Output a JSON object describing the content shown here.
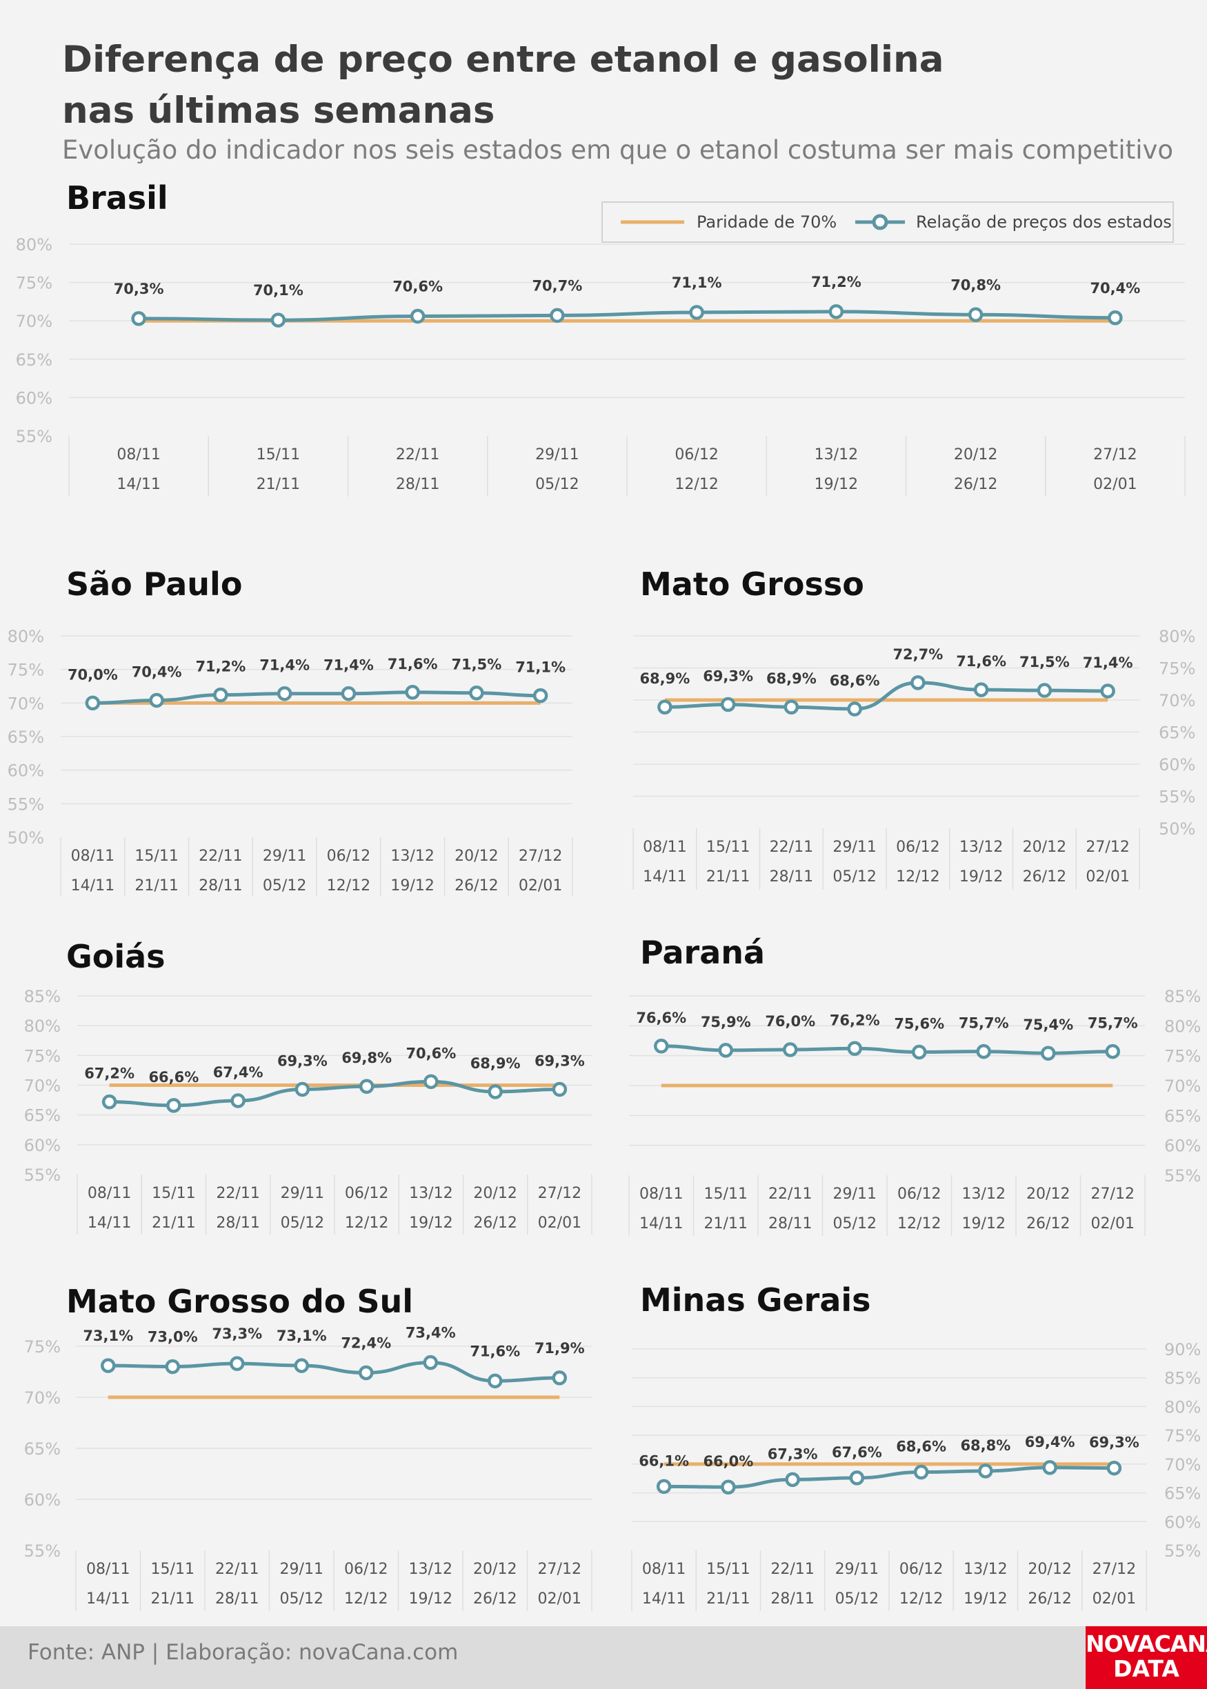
{
  "title_line1": "Diferença de preço entre etanol e gasolina",
  "title_line2": "nas últimas semanas",
  "subtitle": "Evolução do indicador nos seis estados em que o etanol costuma ser mais competitivo",
  "legend": {
    "parity": "Paridade de 70%",
    "series": "Relação de preços dos estados"
  },
  "footer": {
    "source": "Fonte: ANP | Elaboração: novaCana.com",
    "logo_line1": "NOVACANA",
    "logo_line2": "DATA"
  },
  "colors": {
    "series": "#5b95a3",
    "parity": "#e8b06a",
    "grid": "#e1e1e1",
    "tick": "#bdbdbd",
    "background": "#f3f3f3"
  },
  "chart_data": [
    {
      "id": "brasil",
      "title": "Brasil",
      "type": "line",
      "categories": [
        [
          "08/11",
          "14/11"
        ],
        [
          "15/11",
          "21/11"
        ],
        [
          "22/11",
          "28/11"
        ],
        [
          "29/11",
          "05/12"
        ],
        [
          "06/12",
          "12/12"
        ],
        [
          "13/12",
          "19/12"
        ],
        [
          "20/12",
          "26/12"
        ],
        [
          "27/12",
          "02/01"
        ]
      ],
      "values": [
        70.3,
        70.1,
        70.6,
        70.7,
        71.1,
        71.2,
        70.8,
        70.4
      ],
      "labels": [
        "70,3%",
        "70,1%",
        "70,6%",
        "70,7%",
        "71,1%",
        "71,2%",
        "70,8%",
        "70,4%"
      ],
      "parity": 70,
      "yticks": [
        55,
        60,
        65,
        70,
        75,
        80
      ],
      "ytick_labels": [
        "55%",
        "60%",
        "65%",
        "70%",
        "75%",
        "80%"
      ],
      "ylim": [
        55,
        80
      ],
      "yaxis": "left",
      "grid": true
    },
    {
      "id": "sao-paulo",
      "title": "São Paulo",
      "type": "line",
      "categories": [
        [
          "08/11",
          "14/11"
        ],
        [
          "15/11",
          "21/11"
        ],
        [
          "22/11",
          "28/11"
        ],
        [
          "29/11",
          "05/12"
        ],
        [
          "06/12",
          "12/12"
        ],
        [
          "13/12",
          "19/12"
        ],
        [
          "20/12",
          "26/12"
        ],
        [
          "27/12",
          "02/01"
        ]
      ],
      "values": [
        70.0,
        70.4,
        71.2,
        71.4,
        71.4,
        71.6,
        71.5,
        71.1
      ],
      "labels": [
        "70,0%",
        "70,4%",
        "71,2%",
        "71,4%",
        "71,4%",
        "71,6%",
        "71,5%",
        "71,1%"
      ],
      "parity": 70,
      "yticks": [
        50,
        55,
        60,
        65,
        70,
        75,
        80
      ],
      "ytick_labels": [
        "50%",
        "55%",
        "60%",
        "65%",
        "70%",
        "75%",
        "80%"
      ],
      "ylim": [
        50,
        80
      ],
      "yaxis": "left",
      "grid": true
    },
    {
      "id": "mato-grosso",
      "title": "Mato Grosso",
      "type": "line",
      "categories": [
        [
          "08/11",
          "14/11"
        ],
        [
          "15/11",
          "21/11"
        ],
        [
          "22/11",
          "28/11"
        ],
        [
          "29/11",
          "05/12"
        ],
        [
          "06/12",
          "12/12"
        ],
        [
          "13/12",
          "19/12"
        ],
        [
          "20/12",
          "26/12"
        ],
        [
          "27/12",
          "02/01"
        ]
      ],
      "values": [
        68.9,
        69.3,
        68.9,
        68.6,
        72.7,
        71.6,
        71.5,
        71.4
      ],
      "labels": [
        "68,9%",
        "69,3%",
        "68,9%",
        "68,6%",
        "72,7%",
        "71,6%",
        "71,5%",
        "71,4%"
      ],
      "parity": 70,
      "yticks": [
        50,
        55,
        60,
        65,
        70,
        75,
        80
      ],
      "ytick_labels": [
        "50%",
        "55%",
        "60%",
        "65%",
        "70%",
        "75%",
        "80%"
      ],
      "ylim": [
        50,
        80
      ],
      "yaxis": "right",
      "grid": true
    },
    {
      "id": "goias",
      "title": "Goiás",
      "type": "line",
      "categories": [
        [
          "08/11",
          "14/11"
        ],
        [
          "15/11",
          "21/11"
        ],
        [
          "22/11",
          "28/11"
        ],
        [
          "29/11",
          "05/12"
        ],
        [
          "06/12",
          "12/12"
        ],
        [
          "13/12",
          "19/12"
        ],
        [
          "20/12",
          "26/12"
        ],
        [
          "27/12",
          "02/01"
        ]
      ],
      "values": [
        67.2,
        66.6,
        67.4,
        69.3,
        69.8,
        70.6,
        68.9,
        69.3
      ],
      "labels": [
        "67,2%",
        "66,6%",
        "67,4%",
        "69,3%",
        "69,8%",
        "70,6%",
        "68,9%",
        "69,3%"
      ],
      "parity": 70,
      "yticks": [
        55,
        60,
        65,
        70,
        75,
        80,
        85
      ],
      "ytick_labels": [
        "55%",
        "60%",
        "65%",
        "70%",
        "75%",
        "80%",
        "85%"
      ],
      "ylim": [
        55,
        85
      ],
      "yaxis": "left",
      "grid": true
    },
    {
      "id": "parana",
      "title": "Paraná",
      "type": "line",
      "categories": [
        [
          "08/11",
          "14/11"
        ],
        [
          "15/11",
          "21/11"
        ],
        [
          "22/11",
          "28/11"
        ],
        [
          "29/11",
          "05/12"
        ],
        [
          "06/12",
          "12/12"
        ],
        [
          "13/12",
          "19/12"
        ],
        [
          "20/12",
          "26/12"
        ],
        [
          "27/12",
          "02/01"
        ]
      ],
      "values": [
        76.6,
        75.9,
        76.0,
        76.2,
        75.6,
        75.7,
        75.4,
        75.7
      ],
      "labels": [
        "76,6%",
        "75,9%",
        "76,0%",
        "76,2%",
        "75,6%",
        "75,7%",
        "75,4%",
        "75,7%"
      ],
      "parity": 70,
      "yticks": [
        55,
        60,
        65,
        70,
        75,
        80,
        85
      ],
      "ytick_labels": [
        "55%",
        "60%",
        "65%",
        "70%",
        "75%",
        "80%",
        "85%"
      ],
      "ylim": [
        55,
        85
      ],
      "yaxis": "right",
      "grid": true
    },
    {
      "id": "mato-grosso-do-sul",
      "title": "Mato Grosso do Sul",
      "type": "line",
      "categories": [
        [
          "08/11",
          "14/11"
        ],
        [
          "15/11",
          "21/11"
        ],
        [
          "22/11",
          "28/11"
        ],
        [
          "29/11",
          "05/12"
        ],
        [
          "06/12",
          "12/12"
        ],
        [
          "13/12",
          "19/12"
        ],
        [
          "20/12",
          "26/12"
        ],
        [
          "27/12",
          "02/01"
        ]
      ],
      "values": [
        73.1,
        73.0,
        73.3,
        73.1,
        72.4,
        73.4,
        71.6,
        71.9
      ],
      "labels": [
        "73,1%",
        "73,0%",
        "73,3%",
        "73,1%",
        "72,4%",
        "73,4%",
        "71,6%",
        "71,9%"
      ],
      "parity": 70,
      "yticks": [
        55,
        60,
        65,
        70,
        75
      ],
      "ytick_labels": [
        "55%",
        "60%",
        "65%",
        "70%",
        "75%"
      ],
      "ylim": [
        55,
        75
      ],
      "yaxis": "left",
      "grid": true
    },
    {
      "id": "minas-gerais",
      "title": "Minas Gerais",
      "type": "line",
      "categories": [
        [
          "08/11",
          "14/11"
        ],
        [
          "15/11",
          "21/11"
        ],
        [
          "22/11",
          "28/11"
        ],
        [
          "29/11",
          "05/12"
        ],
        [
          "06/12",
          "12/12"
        ],
        [
          "13/12",
          "19/12"
        ],
        [
          "20/12",
          "26/12"
        ],
        [
          "27/12",
          "02/01"
        ]
      ],
      "values": [
        66.1,
        66.0,
        67.3,
        67.6,
        68.6,
        68.8,
        69.4,
        69.3
      ],
      "labels": [
        "66,1%",
        "66,0%",
        "67,3%",
        "67,6%",
        "68,6%",
        "68,8%",
        "69,4%",
        "69,3%"
      ],
      "parity": 70,
      "yticks": [
        55,
        60,
        65,
        70,
        75,
        80,
        85,
        90
      ],
      "ytick_labels": [
        "55%",
        "60%",
        "65%",
        "70%",
        "75%",
        "80%",
        "85%",
        "90%"
      ],
      "ylim": [
        55,
        90
      ],
      "yaxis": "right",
      "grid": true
    }
  ]
}
